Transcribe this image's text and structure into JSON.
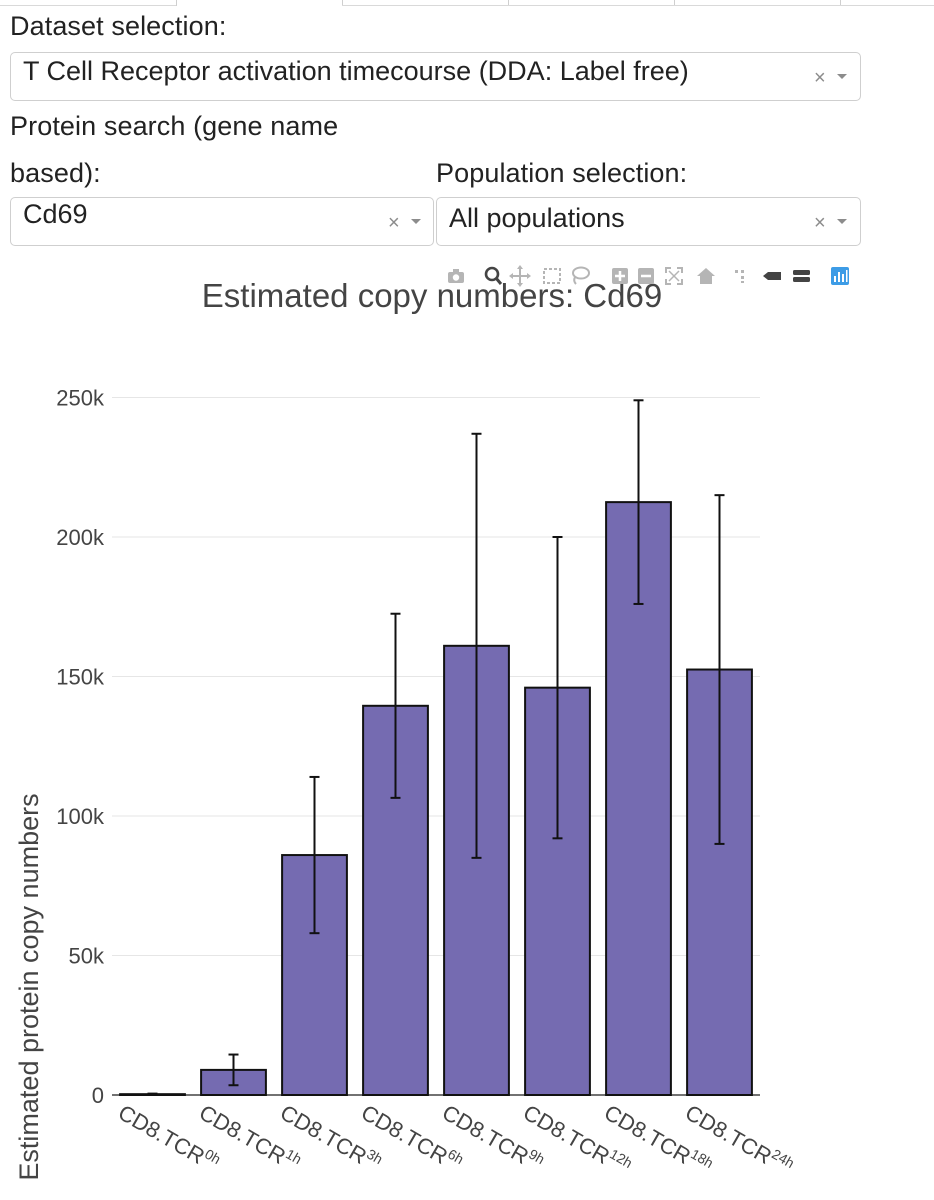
{
  "dataset": {
    "label": "Dataset selection:",
    "value": "T Cell Receptor activation timecourse (DDA: Label free)",
    "clear": "×"
  },
  "protein": {
    "label_line1": "Protein search (gene name",
    "label_line2": "based):",
    "value": "Cd69",
    "clear": "×"
  },
  "population": {
    "label": "Population selection:",
    "value": "All populations",
    "clear": "×"
  },
  "modebar": {
    "icons": [
      "camera-icon",
      "zoom-icon",
      "pan-icon",
      "box-select-icon",
      "lasso-select-icon",
      "zoom-in-icon",
      "zoom-out-icon",
      "autoscale-icon",
      "reset-axes-icon",
      "spike-lines-icon",
      "hover-closest-icon",
      "hover-compare-icon",
      "plotly-logo-icon"
    ]
  },
  "chart_data": {
    "type": "bar",
    "title": "Estimated copy numbers: Cd69",
    "xlabel": "",
    "ylabel": "Estimated protein copy numbers",
    "categories": [
      {
        "base": "CD8.TCR",
        "sup": "0h"
      },
      {
        "base": "CD8.TCR",
        "sup": "1h"
      },
      {
        "base": "CD8.TCR",
        "sup": "3h"
      },
      {
        "base": "CD8.TCR",
        "sup": "6h"
      },
      {
        "base": "CD8.TCR",
        "sup": "9h"
      },
      {
        "base": "CD8.TCR",
        "sup": "12h"
      },
      {
        "base": "CD8.TCR",
        "sup": "18h"
      },
      {
        "base": "CD8.TCR",
        "sup": "24h"
      }
    ],
    "values": [
      300,
      9000,
      86000,
      139500,
      161000,
      146000,
      212500,
      152500
    ],
    "error": [
      200,
      5500,
      28000,
      33000,
      76000,
      54000,
      36500,
      62500
    ],
    "ylim": [
      0,
      255000
    ],
    "yticks": [
      0,
      50000,
      100000,
      150000,
      200000,
      250000
    ],
    "ytick_labels": [
      "0",
      "50k",
      "100k",
      "150k",
      "200k",
      "250k"
    ],
    "bar_color": "#756bb1",
    "bar_border_color": "#111111",
    "grid": true,
    "legend": "none"
  }
}
